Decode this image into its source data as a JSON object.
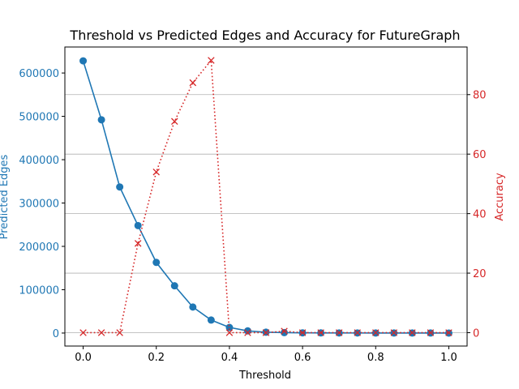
{
  "chart_data": {
    "type": "line",
    "title": "Threshold vs Predicted Edges and Accuracy for FutureGraph",
    "xlabel": "Threshold",
    "ylabel_left": "Predicted Edges",
    "ylabel_right": "Accuracy",
    "xlim": [
      -0.05,
      1.05
    ],
    "ylim_left": [
      -30000,
      660000
    ],
    "ylim_right": [
      -4.5,
      96
    ],
    "x_ticks": [
      0.0,
      0.2,
      0.4,
      0.6,
      0.8,
      1.0
    ],
    "x_tick_labels": [
      "0.0",
      "0.2",
      "0.4",
      "0.6",
      "0.8",
      "1.0"
    ],
    "y_left_ticks": [
      0,
      100000,
      200000,
      300000,
      400000,
      500000,
      600000
    ],
    "y_left_tick_labels": [
      "0",
      "100000",
      "200000",
      "300000",
      "400000",
      "500000",
      "600000"
    ],
    "y_right_ticks": [
      0,
      20,
      40,
      60,
      80
    ],
    "y_right_tick_labels": [
      "0",
      "20",
      "40",
      "60",
      "80"
    ],
    "grid": "horizontal lines at right-axis ticks",
    "colors": {
      "left": "#1f77b4",
      "right": "#d62728",
      "grid": "#b0b0b0",
      "text": "#000000"
    },
    "x": [
      0.0,
      0.05,
      0.1,
      0.15,
      0.2,
      0.25,
      0.3,
      0.35,
      0.4,
      0.45,
      0.5,
      0.55,
      0.6,
      0.65,
      0.7,
      0.75,
      0.8,
      0.85,
      0.9,
      0.95,
      1.0
    ],
    "series": [
      {
        "axis": "left",
        "marker": "circle",
        "linestyle": "solid",
        "values": [
          628000,
          492000,
          337000,
          248000,
          163000,
          109000,
          60000,
          30000,
          13000,
          5000,
          2000,
          1000,
          500,
          300,
          200,
          150,
          100,
          80,
          60,
          40,
          20
        ]
      },
      {
        "axis": "right",
        "marker": "x",
        "linestyle": "dotted",
        "values": [
          0,
          0,
          0,
          30,
          54,
          71,
          84,
          91.5,
          0,
          0,
          0,
          0.5,
          0,
          0,
          0,
          0,
          0,
          0,
          0,
          0,
          0
        ]
      }
    ]
  }
}
